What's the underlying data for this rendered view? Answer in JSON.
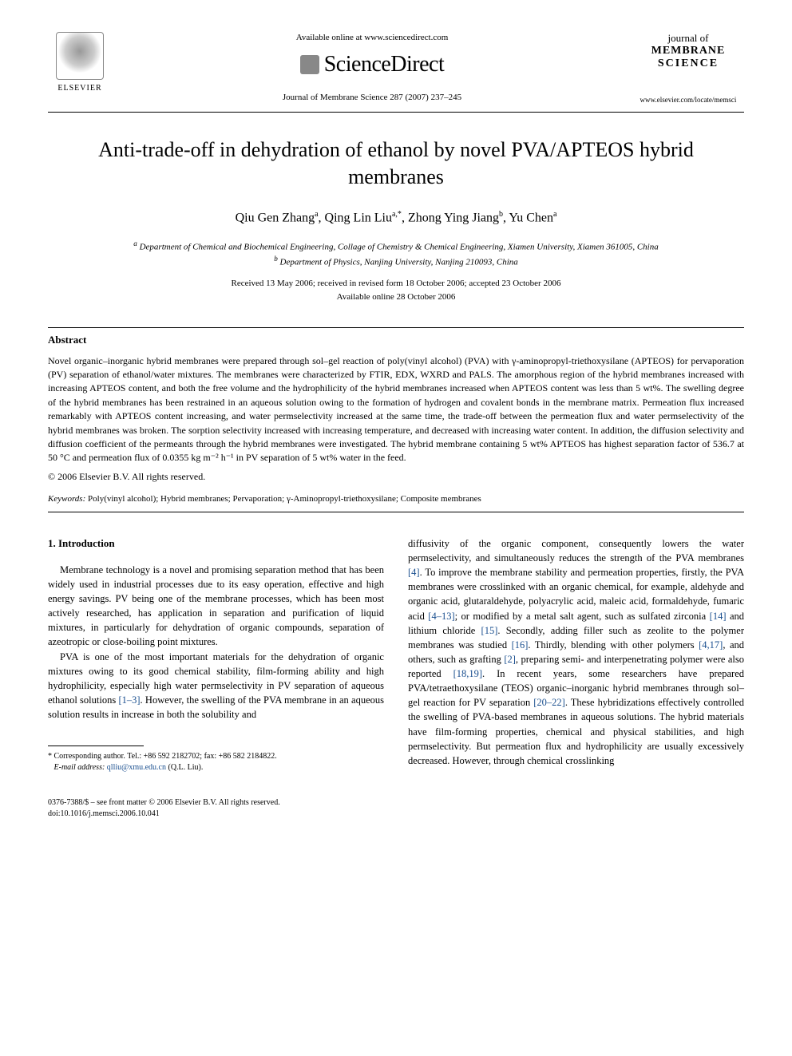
{
  "header": {
    "elsevier_label": "ELSEVIER",
    "available_online": "Available online at www.sciencedirect.com",
    "sciencedirect": "ScienceDirect",
    "journal_ref": "Journal of Membrane Science 287 (2007) 237–245",
    "journal_name_line1": "journal of",
    "journal_name_line2": "MEMBRANE",
    "journal_name_line3": "SCIENCE",
    "journal_url": "www.elsevier.com/locate/memsci"
  },
  "title": "Anti-trade-off in dehydration of ethanol by novel PVA/APTEOS hybrid membranes",
  "authors_html": "Qiu Gen Zhang<sup>a</sup>, Qing Lin Liu<sup>a,*</sup>, Zhong Ying Jiang<sup>b</sup>, Yu Chen<sup>a</sup>",
  "affiliations": {
    "a": "Department of Chemical and Biochemical Engineering, Collage of Chemistry & Chemical Engineering, Xiamen University, Xiamen 361005, China",
    "b": "Department of Physics, Nanjing University, Nanjing 210093, China"
  },
  "dates": {
    "received": "Received 13 May 2006; received in revised form 18 October 2006; accepted 23 October 2006",
    "online": "Available online 28 October 2006"
  },
  "abstract": {
    "heading": "Abstract",
    "text": "Novel organic–inorganic hybrid membranes were prepared through sol–gel reaction of poly(vinyl alcohol) (PVA) with γ-aminopropyl-triethoxysilane (APTEOS) for pervaporation (PV) separation of ethanol/water mixtures. The membranes were characterized by FTIR, EDX, WXRD and PALS. The amorphous region of the hybrid membranes increased with increasing APTEOS content, and both the free volume and the hydrophilicity of the hybrid membranes increased when APTEOS content was less than 5 wt%. The swelling degree of the hybrid membranes has been restrained in an aqueous solution owing to the formation of hydrogen and covalent bonds in the membrane matrix. Permeation flux increased remarkably with APTEOS content increasing, and water permselectivity increased at the same time, the trade-off between the permeation flux and water permselectivity of the hybrid membranes was broken. The sorption selectivity increased with increasing temperature, and decreased with increasing water content. In addition, the diffusion selectivity and diffusion coefficient of the permeants through the hybrid membranes were investigated. The hybrid membrane containing 5 wt% APTEOS has highest separation factor of 536.7 at 50 °C and permeation flux of 0.0355 kg m⁻² h⁻¹ in PV separation of 5 wt% water in the feed.",
    "copyright": "© 2006 Elsevier B.V. All rights reserved."
  },
  "keywords": {
    "label": "Keywords:",
    "text": "Poly(vinyl alcohol); Hybrid membranes; Pervaporation; γ-Aminopropyl-triethoxysilane; Composite membranes"
  },
  "intro": {
    "heading": "1. Introduction",
    "p1": "Membrane technology is a novel and promising separation method that has been widely used in industrial processes due to its easy operation, effective and high energy savings. PV being one of the membrane processes, which has been most actively researched, has application in separation and purification of liquid mixtures, in particularly for dehydration of organic compounds, separation of azeotropic or close-boiling point mixtures.",
    "p2_pre": "PVA is one of the most important materials for the dehydration of organic mixtures owing to its good chemical stability, film-forming ability and high hydrophilicity, especially high water permselectivity in PV separation of aqueous ethanol solutions ",
    "p2_ref1": "[1–3]",
    "p2_mid": ". However, the swelling of the PVA membrane in an aqueous solution results in increase in both the solubility and",
    "col2_start": "diffusivity of the organic component, consequently lowers the water permselectivity, and simultaneously reduces the strength of the PVA membranes ",
    "ref4": "[4]",
    "col2_a": ". To improve the membrane stability and permeation properties, firstly, the PVA membranes were crosslinked with an organic chemical, for example, aldehyde and organic acid, glutaraldehyde, polyacrylic acid, maleic acid, formaldehyde, fumaric acid ",
    "ref4_13": "[4–13]",
    "col2_b": "; or modified by a metal salt agent, such as sulfated zirconia ",
    "ref14": "[14]",
    "col2_c": " and lithium chloride ",
    "ref15": "[15]",
    "col2_d": ". Secondly, adding filler such as zeolite to the polymer membranes was studied ",
    "ref16": "[16]",
    "col2_e": ". Thirdly, blending with other polymers ",
    "ref4_17": "[4,17]",
    "col2_f": ", and others, such as grafting ",
    "ref2": "[2]",
    "col2_g": ", preparing semi- and interpenetrating polymer were also reported ",
    "ref18_19": "[18,19]",
    "col2_h": ". In recent years, some researchers have prepared PVA/tetraethoxysilane (TEOS) organic–inorganic hybrid membranes through sol–gel reaction for PV separation ",
    "ref20_22": "[20–22]",
    "col2_i": ". These hybridizations effectively controlled the swelling of PVA-based membranes in aqueous solutions. The hybrid materials have film-forming properties, chemical and physical stabilities, and high permselectivity. But permeation flux and hydrophilicity are usually excessively decreased. However, through chemical crosslinking"
  },
  "footnote": {
    "corresponding": "* Corresponding author. Tel.: +86 592 2182702; fax: +86 582 2184822.",
    "email_label": "E-mail address:",
    "email": "qlliu@xmu.edu.cn",
    "email_who": "(Q.L. Liu)."
  },
  "footer": {
    "issn": "0376-7388/$ – see front matter © 2006 Elsevier B.V. All rights reserved.",
    "doi": "doi:10.1016/j.memsci.2006.10.041"
  },
  "colors": {
    "link": "#1a4f8f",
    "text": "#000000",
    "background": "#ffffff"
  }
}
